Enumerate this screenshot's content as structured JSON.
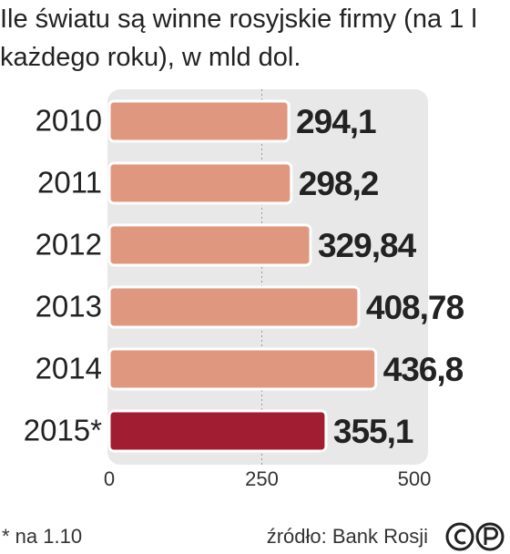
{
  "chart_data": {
    "type": "bar",
    "orientation": "horizontal",
    "title": "Ile światu są winne rosyjskie firmy (na 1 l każdego roku), w mld dol.",
    "categories": [
      "2010",
      "2011",
      "2012",
      "2013",
      "2014",
      "2015*"
    ],
    "values": [
      294.1,
      298.2,
      329.84,
      408.78,
      436.8,
      355.1
    ],
    "value_labels": [
      "294,1",
      "298,2",
      "329,84",
      "408,78",
      "436,8",
      "355,1"
    ],
    "colors": [
      "#e0977f",
      "#e0977f",
      "#e0977f",
      "#e0977f",
      "#e0977f",
      "#a11d31"
    ],
    "xlim": [
      0,
      500
    ],
    "xticks": [
      0,
      250,
      500
    ],
    "footnote": "* na 1.10",
    "source": "źródło: Bank Rosji"
  }
}
